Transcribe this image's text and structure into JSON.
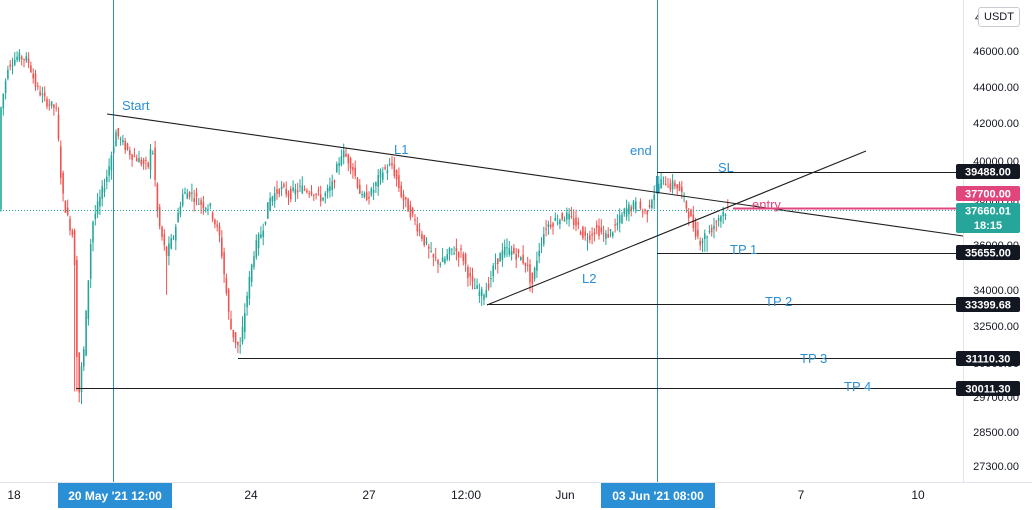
{
  "chart_data": {
    "type": "candlestick",
    "quote_currency": "USDT",
    "y_axis_ticks": [
      "27300.00",
      "28500.00",
      "29700.00",
      "30900.00",
      "32500.00",
      "34000.00",
      "36000.00",
      "38000.00",
      "40000.00",
      "42000.00",
      "44000.00",
      "46000.00"
    ],
    "y_axis_top_partial": "4",
    "x_axis_ticks": [
      "18",
      "24",
      "27",
      "12:00",
      "Jun",
      "7",
      "10"
    ],
    "ylim": [
      26500,
      48500
    ],
    "price_labels": [
      {
        "text": "39488.00",
        "value": 39488.0,
        "style": "dark"
      },
      {
        "text": "37700.00",
        "value": 37700.0,
        "style": "pink"
      },
      {
        "text": "37660.01",
        "value": 37660.01,
        "countdown": "18:15",
        "style": "teal"
      },
      {
        "text": "35655.00",
        "value": 35655.0,
        "style": "dark"
      },
      {
        "text": "33399.68",
        "value": 33399.68,
        "style": "dark"
      },
      {
        "text": "31110.30",
        "value": 31110.3,
        "style": "dark"
      },
      {
        "text": "30011.30",
        "value": 30011.3,
        "style": "dark"
      }
    ],
    "time_markers": [
      {
        "label": "20 May '21   12:00"
      },
      {
        "label": "03 Jun '21   08:00"
      }
    ],
    "annotations": [
      {
        "text": "Start",
        "color": "#2b8fd6"
      },
      {
        "text": "L1",
        "color": "#2b8fd6"
      },
      {
        "text": "end",
        "color": "#2b8fd6"
      },
      {
        "text": "SL",
        "color": "#2b8fd6"
      },
      {
        "text": "entry",
        "color": "#e0467c"
      },
      {
        "text": "L2",
        "color": "#2b8fd6"
      },
      {
        "text": "TP 1",
        "color": "#2b8fd6"
      },
      {
        "text": "TP 2",
        "color": "#2b8fd6"
      },
      {
        "text": "TP 3",
        "color": "#2b8fd6"
      },
      {
        "text": "TP 4",
        "color": "#2b8fd6"
      }
    ],
    "levels": [
      {
        "name": "SL",
        "value": 39488.0
      },
      {
        "name": "entry",
        "value": 37700.0
      },
      {
        "name": "TP 1",
        "value": 35655.0
      },
      {
        "name": "TP 2",
        "value": 33399.68
      },
      {
        "name": "TP 3",
        "value": 31110.3
      },
      {
        "name": "TP 4",
        "value": 30011.3
      }
    ],
    "price_path": [
      [
        0,
        42500
      ],
      [
        8,
        45200
      ],
      [
        18,
        45700
      ],
      [
        28,
        45500
      ],
      [
        36,
        44000
      ],
      [
        46,
        43200
      ],
      [
        56,
        42800
      ],
      [
        62,
        38500
      ],
      [
        68,
        37200
      ],
      [
        74,
        36300
      ],
      [
        78,
        29500
      ],
      [
        84,
        31500
      ],
      [
        92,
        37000
      ],
      [
        100,
        38200
      ],
      [
        108,
        39500
      ],
      [
        116,
        41500
      ],
      [
        124,
        40800
      ],
      [
        132,
        40300
      ],
      [
        140,
        40000
      ],
      [
        148,
        39700
      ],
      [
        152,
        41000
      ],
      [
        158,
        37200
      ],
      [
        166,
        35500
      ],
      [
        174,
        36500
      ],
      [
        182,
        38400
      ],
      [
        190,
        38500
      ],
      [
        200,
        38000
      ],
      [
        210,
        37800
      ],
      [
        220,
        36300
      ],
      [
        230,
        32500
      ],
      [
        236,
        31800
      ],
      [
        240,
        31500
      ],
      [
        246,
        33500
      ],
      [
        254,
        35700
      ],
      [
        262,
        36700
      ],
      [
        270,
        38200
      ],
      [
        280,
        38700
      ],
      [
        290,
        38400
      ],
      [
        300,
        38700
      ],
      [
        312,
        38600
      ],
      [
        322,
        38200
      ],
      [
        332,
        38800
      ],
      [
        342,
        40500
      ],
      [
        352,
        39800
      ],
      [
        362,
        38200
      ],
      [
        372,
        38500
      ],
      [
        382,
        39500
      ],
      [
        392,
        39800
      ],
      [
        402,
        38300
      ],
      [
        412,
        37400
      ],
      [
        422,
        36400
      ],
      [
        432,
        35400
      ],
      [
        442,
        35200
      ],
      [
        452,
        35800
      ],
      [
        462,
        35600
      ],
      [
        472,
        34200
      ],
      [
        482,
        33800
      ],
      [
        488,
        34200
      ],
      [
        496,
        35300
      ],
      [
        506,
        35800
      ],
      [
        516,
        35600
      ],
      [
        526,
        35200
      ],
      [
        532,
        34200
      ],
      [
        538,
        35700
      ],
      [
        546,
        36900
      ],
      [
        556,
        37200
      ],
      [
        566,
        37400
      ],
      [
        576,
        37000
      ],
      [
        586,
        36300
      ],
      [
        596,
        36800
      ],
      [
        606,
        36400
      ],
      [
        616,
        36900
      ],
      [
        626,
        37700
      ],
      [
        636,
        37900
      ],
      [
        646,
        37500
      ],
      [
        652,
        38300
      ],
      [
        658,
        38900
      ],
      [
        664,
        39100
      ],
      [
        670,
        38800
      ],
      [
        676,
        38900
      ],
      [
        682,
        38400
      ],
      [
        688,
        37600
      ],
      [
        694,
        36800
      ],
      [
        700,
        36200
      ],
      [
        706,
        36500
      ],
      [
        712,
        36800
      ],
      [
        718,
        37300
      ],
      [
        724,
        37600
      ],
      [
        730,
        37700
      ]
    ]
  }
}
